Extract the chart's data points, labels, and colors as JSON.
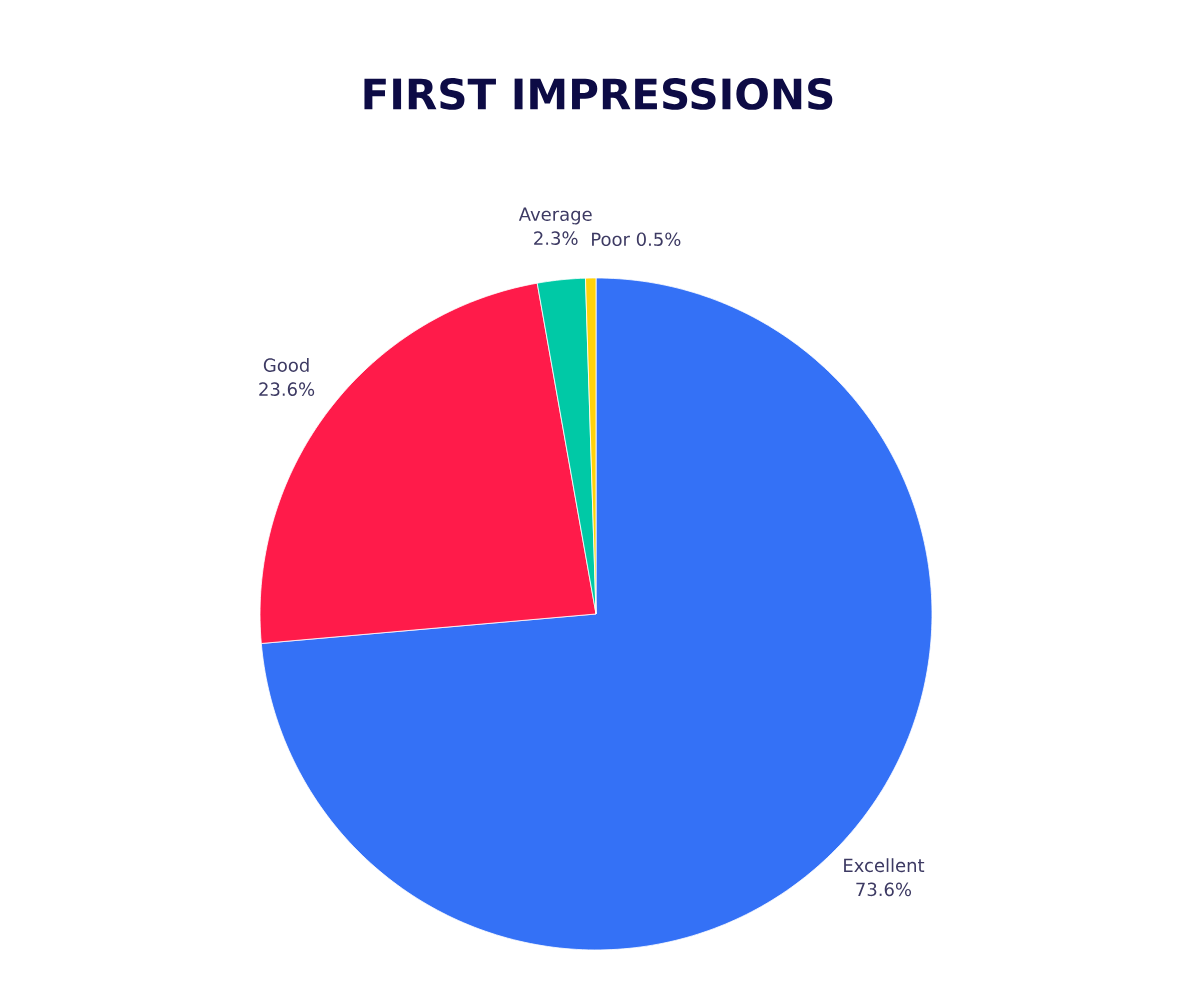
{
  "chart_data": {
    "type": "pie",
    "title": "FIRST IMPRESSIONS",
    "categories": [
      "Excellent",
      "Good",
      "Average",
      "Poor"
    ],
    "values": [
      73.6,
      23.6,
      2.3,
      0.5
    ],
    "value_labels": [
      "73.6%",
      "23.6%",
      "2.3%",
      "0.5%"
    ],
    "colors": [
      "#3471f6",
      "#ff1b4a",
      "#00c9a6",
      "#ffd20a"
    ]
  }
}
